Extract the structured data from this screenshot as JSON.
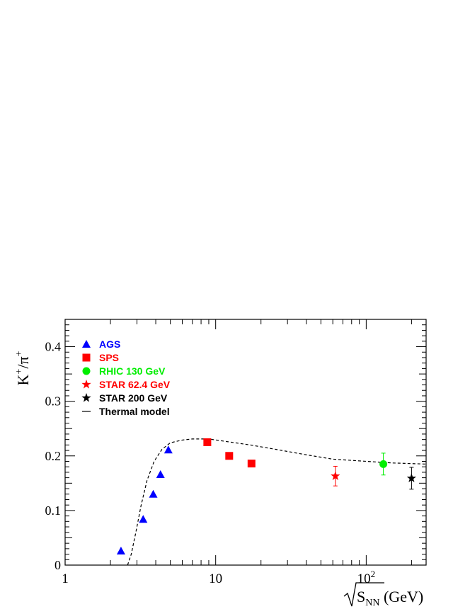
{
  "chart_data": {
    "type": "scatter",
    "x_scale": "log",
    "xlim": [
      1,
      250
    ],
    "ylim": [
      0,
      0.45
    ],
    "x_ticks": [
      {
        "value": 1,
        "label": "1"
      },
      {
        "value": 10,
        "label": "10"
      },
      {
        "value": 100,
        "label": "10",
        "sup": "2"
      }
    ],
    "y_ticks": [
      {
        "value": 0,
        "label": "0"
      },
      {
        "value": 0.1,
        "label": "0.1"
      },
      {
        "value": 0.2,
        "label": "0.2"
      },
      {
        "value": 0.3,
        "label": "0.3"
      },
      {
        "value": 0.4,
        "label": "0.4"
      }
    ],
    "ylabel": {
      "base": "K",
      "sup1": "+",
      "mid": "/π",
      "sup2": "+"
    },
    "xlabel": {
      "root": "S",
      "sub": "NN",
      "unit": " (GeV)"
    },
    "legend_placement": "top-left",
    "series": [
      {
        "name": "AGS",
        "marker": "triangle",
        "color": "#0000ff",
        "points": [
          [
            2.35,
            0.026
          ],
          [
            3.3,
            0.084
          ],
          [
            3.85,
            0.13
          ],
          [
            4.3,
            0.166
          ],
          [
            4.85,
            0.211
          ]
        ]
      },
      {
        "name": "SPS",
        "marker": "square",
        "color": "#ff0000",
        "points": [
          [
            8.8,
            0.225
          ],
          [
            12.3,
            0.2
          ],
          [
            17.3,
            0.186
          ]
        ]
      },
      {
        "name": "RHIC 130 GeV",
        "marker": "circle",
        "color": "#00ee00",
        "points": [
          [
            130,
            0.185
          ]
        ],
        "errors": [
          0.02
        ]
      },
      {
        "name": "STAR 62.4 GeV",
        "marker": "star",
        "color": "#ff0000",
        "points": [
          [
            62.4,
            0.163
          ]
        ],
        "errors": [
          0.018
        ]
      },
      {
        "name": "STAR 200 GeV",
        "marker": "star",
        "color": "#000000",
        "points": [
          [
            200,
            0.159
          ]
        ],
        "errors": [
          0.02
        ]
      },
      {
        "name": "Thermal model",
        "marker": "dashed-line",
        "color": "#000000",
        "points": [
          [
            2.6,
            0.0
          ],
          [
            2.75,
            0.02
          ],
          [
            2.95,
            0.06
          ],
          [
            3.2,
            0.11
          ],
          [
            3.5,
            0.155
          ],
          [
            3.9,
            0.19
          ],
          [
            4.4,
            0.212
          ],
          [
            5.0,
            0.224
          ],
          [
            6.0,
            0.229
          ],
          [
            7.0,
            0.231
          ],
          [
            9.0,
            0.231
          ],
          [
            12.0,
            0.226
          ],
          [
            17.0,
            0.22
          ],
          [
            25.0,
            0.212
          ],
          [
            40.0,
            0.202
          ],
          [
            60.0,
            0.194
          ],
          [
            100.0,
            0.19
          ],
          [
            150.0,
            0.187
          ],
          [
            250.0,
            0.185
          ]
        ]
      }
    ]
  }
}
